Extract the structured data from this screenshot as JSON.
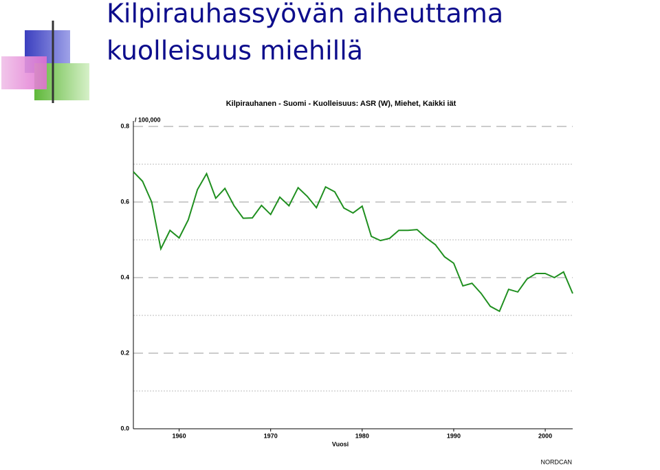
{
  "slide": {
    "title_lines": [
      "Kilpirauhassyövän aiheuttama",
      "kuolleisuus miehillä"
    ]
  },
  "chart_data": {
    "type": "line",
    "title": "Kilpirauhanen - Suomi - Kuolleisuus: ASR (W), Miehet, Kaikki iät",
    "y_label": "/ 100,000",
    "x_label": "Vuosi",
    "x": [
      1955,
      1956,
      1957,
      1958,
      1959,
      1960,
      1961,
      1962,
      1963,
      1964,
      1965,
      1966,
      1967,
      1968,
      1969,
      1970,
      1971,
      1972,
      1973,
      1974,
      1975,
      1976,
      1977,
      1978,
      1979,
      1980,
      1981,
      1982,
      1983,
      1984,
      1985,
      1986,
      1987,
      1988,
      1989,
      1990,
      1991,
      1992,
      1993,
      1994,
      1995,
      1996,
      1997,
      1998,
      1999,
      2000,
      2001,
      2002,
      2003
    ],
    "values": [
      0.68,
      0.655,
      0.6,
      0.476,
      0.525,
      0.505,
      0.553,
      0.633,
      0.675,
      0.61,
      0.636,
      0.59,
      0.557,
      0.558,
      0.591,
      0.567,
      0.613,
      0.59,
      0.638,
      0.615,
      0.585,
      0.64,
      0.627,
      0.584,
      0.571,
      0.589,
      0.509,
      0.498,
      0.504,
      0.525,
      0.525,
      0.527,
      0.505,
      0.487,
      0.455,
      0.438,
      0.378,
      0.385,
      0.358,
      0.324,
      0.311,
      0.369,
      0.362,
      0.396,
      0.411,
      0.411,
      0.4,
      0.415,
      0.358
    ],
    "color": "#1f8f1f",
    "xlim": [
      1955,
      2003
    ],
    "xticks": [
      1960,
      1970,
      1980,
      1990,
      2000
    ],
    "ylim": [
      0,
      0.8
    ],
    "yticks": [
      {
        "value": 0,
        "label": "0.0"
      },
      0.2,
      0.4,
      0.6,
      0.8
    ],
    "minor_yticks": [
      0.1,
      0.3,
      0.5,
      0.7
    ],
    "grid": true
  },
  "footer": "NORDCAN"
}
